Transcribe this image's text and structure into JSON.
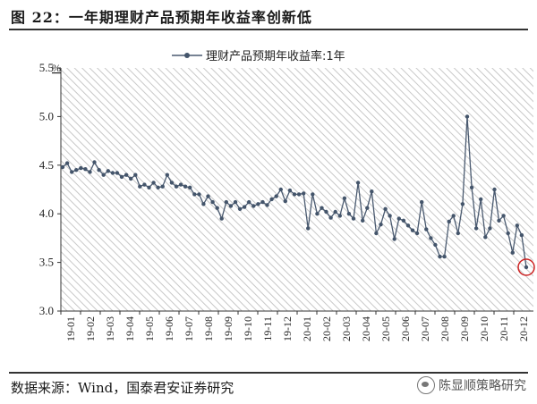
{
  "figure": {
    "title": "图 22：一年期理财产品预期年收益率创新低",
    "source": "数据来源：Wind，国泰君安证券研究",
    "watermark": "陈显顺策略研究",
    "watermark_icon": "wechat-icon"
  },
  "chart_data": {
    "type": "line",
    "title": "",
    "unit_label": "%",
    "ylim": [
      3.0,
      5.5
    ],
    "yticks": [
      "3.0",
      "3.5",
      "4.0",
      "4.5",
      "5.0",
      "5.5"
    ],
    "grid": false,
    "background": "diagonal-hatch",
    "legend_position": "top-center",
    "xtick_labels": [
      "19-01",
      "19-02",
      "19-03",
      "19-04",
      "19-05",
      "19-06",
      "19-07",
      "19-08",
      "19-09",
      "19-10",
      "19-11",
      "19-12",
      "20-01",
      "20-02",
      "20-03",
      "20-04",
      "20-05",
      "20-06",
      "20-07",
      "20-08",
      "20-09",
      "20-10",
      "20-11",
      "20-12"
    ],
    "colors": {
      "line": "#4a5a70",
      "marker": "#44556b",
      "highlight": "#cc2222",
      "hatch": "#c8c8c8"
    },
    "series": [
      {
        "name": "理财产品预期年收益率:1年",
        "values": [
          4.48,
          4.52,
          4.43,
          4.45,
          4.47,
          4.46,
          4.43,
          4.53,
          4.45,
          4.4,
          4.44,
          4.42,
          4.42,
          4.38,
          4.4,
          4.36,
          4.4,
          4.28,
          4.3,
          4.27,
          4.32,
          4.27,
          4.28,
          4.4,
          4.32,
          4.28,
          4.3,
          4.28,
          4.27,
          4.2,
          4.2,
          4.1,
          4.18,
          4.12,
          4.06,
          3.95,
          4.12,
          4.08,
          4.12,
          4.05,
          4.07,
          4.12,
          4.08,
          4.1,
          4.12,
          4.09,
          4.15,
          4.18,
          4.25,
          4.13,
          4.24,
          4.2,
          4.2,
          4.21,
          3.85,
          4.2,
          4.0,
          4.06,
          4.02,
          3.96,
          4.02,
          3.98,
          4.16,
          4.0,
          3.95,
          4.32,
          3.93,
          4.06,
          4.23,
          3.8,
          3.89,
          4.05,
          3.98,
          3.74,
          3.95,
          3.93,
          3.88,
          3.83,
          3.8,
          4.12,
          3.84,
          3.75,
          3.68,
          3.56,
          3.56,
          3.92,
          3.98,
          3.8,
          4.1,
          5.0,
          4.27,
          3.85,
          4.15,
          3.76,
          3.85,
          4.25,
          3.93,
          3.98,
          3.8,
          3.6,
          3.88,
          3.78,
          3.45
        ],
        "highlight_last": true
      }
    ]
  }
}
